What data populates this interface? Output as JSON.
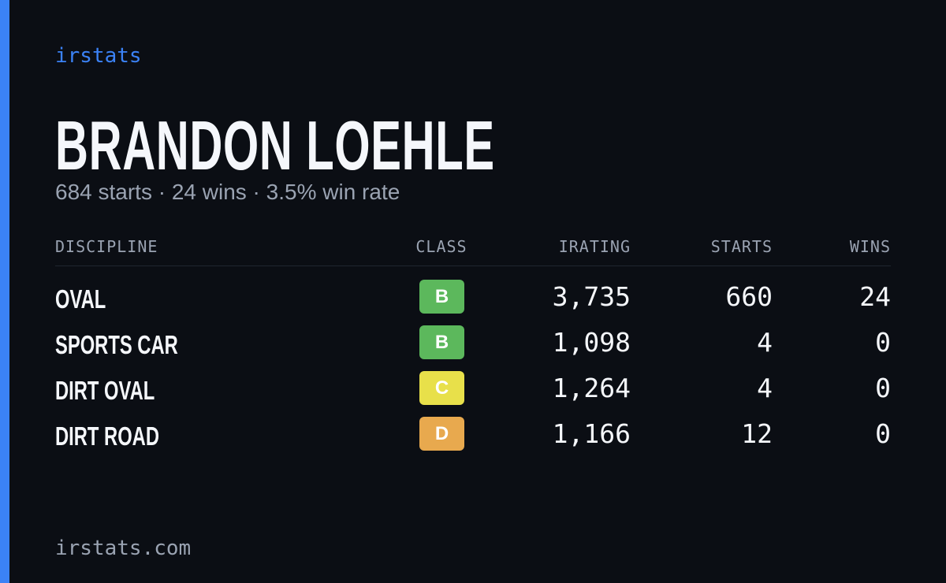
{
  "brand": "irstats",
  "title": "BRANDON LOEHLE",
  "subtitle": "684 starts · 24 wins · 3.5% win rate",
  "table": {
    "headers": [
      "DISCIPLINE",
      "CLASS",
      "IRATING",
      "STARTS",
      "WINS"
    ],
    "rows": [
      {
        "discipline": "OVAL",
        "class": "B",
        "class_color": "#5cb85c",
        "irating": "3,735",
        "starts": "660",
        "wins": "24"
      },
      {
        "discipline": "SPORTS CAR",
        "class": "B",
        "class_color": "#5cb85c",
        "irating": "1,098",
        "starts": "4",
        "wins": "0"
      },
      {
        "discipline": "DIRT OVAL",
        "class": "C",
        "class_color": "#e8e04a",
        "irating": "1,264",
        "starts": "4",
        "wins": "0"
      },
      {
        "discipline": "DIRT ROAD",
        "class": "D",
        "class_color": "#e8a94e",
        "irating": "1,166",
        "starts": "12",
        "wins": "0"
      }
    ]
  },
  "footer": "irstats.com"
}
